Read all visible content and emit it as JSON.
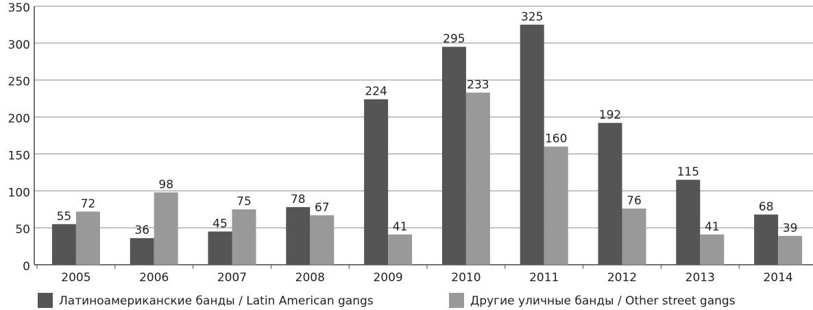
{
  "chart_data": {
    "type": "bar",
    "categories": [
      "2005",
      "2006",
      "2007",
      "2008",
      "2009",
      "2010",
      "2011",
      "2012",
      "2013",
      "2014"
    ],
    "series": [
      {
        "name": "Латиноамериканские банды / Latin American gangs",
        "color": "#555555",
        "values": [
          55,
          36,
          45,
          78,
          224,
          295,
          325,
          192,
          115,
          68
        ]
      },
      {
        "name": "Другие уличные банды / Other street gangs",
        "color": "#999999",
        "values": [
          72,
          98,
          75,
          67,
          41,
          233,
          160,
          76,
          41,
          39
        ]
      }
    ],
    "ylim": [
      0,
      350
    ],
    "yticks": [
      0,
      50,
      100,
      150,
      200,
      250,
      300,
      350
    ],
    "grid": true,
    "legend": "bottom"
  }
}
